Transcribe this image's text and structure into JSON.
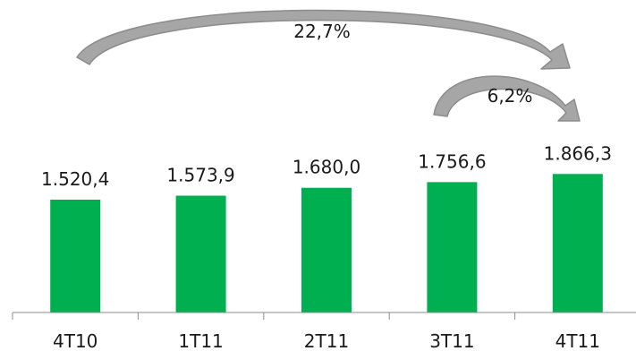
{
  "chart_data": {
    "type": "bar",
    "categories": [
      "4T10",
      "1T11",
      "2T11",
      "3T11",
      "4T11"
    ],
    "values": [
      1520.4,
      1573.9,
      1680.0,
      1756.6,
      1866.3
    ],
    "value_labels": [
      "1.520,4",
      "1.573,9",
      "1.680,0",
      "1.756,6",
      "1.866,3"
    ],
    "bar_color": "#00B050",
    "arrow_color": "#A6A6A6",
    "annotations": [
      {
        "label": "22,7%",
        "from": "4T10",
        "to": "4T11"
      },
      {
        "label": "6,2%",
        "from": "3T11",
        "to": "4T11"
      }
    ],
    "grid": false,
    "legend": "none"
  }
}
